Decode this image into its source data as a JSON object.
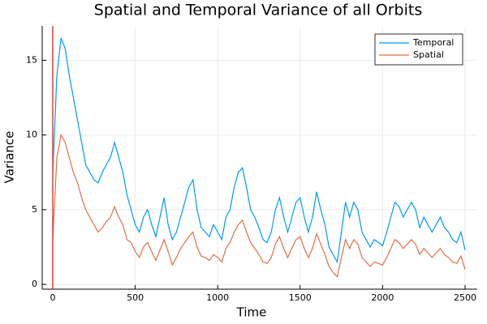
{
  "chart_data": {
    "type": "line",
    "title": "Spatial and Temporal Variance of all Orbits",
    "x_label": "Time",
    "y_label": "Variance",
    "x": [
      0,
      25,
      50,
      75,
      100,
      125,
      150,
      175,
      200,
      225,
      250,
      275,
      300,
      325,
      350,
      375,
      400,
      425,
      450,
      475,
      500,
      525,
      550,
      575,
      600,
      625,
      650,
      675,
      700,
      725,
      750,
      775,
      800,
      825,
      850,
      875,
      900,
      925,
      950,
      975,
      1000,
      1025,
      1050,
      1075,
      1100,
      1125,
      1150,
      1175,
      1200,
      1225,
      1250,
      1275,
      1300,
      1325,
      1350,
      1375,
      1400,
      1425,
      1450,
      1475,
      1500,
      1525,
      1550,
      1575,
      1600,
      1625,
      1650,
      1675,
      1700,
      1725,
      1750,
      1775,
      1800,
      1825,
      1850,
      1875,
      1900,
      1925,
      1950,
      1975,
      2000,
      2025,
      2050,
      2075,
      2100,
      2125,
      2150,
      2175,
      2200,
      2225,
      2250,
      2275,
      2300,
      2325,
      2350,
      2375,
      2400,
      2425,
      2450,
      2475,
      2500
    ],
    "series": [
      {
        "name": "Temporal",
        "color": "#009af9",
        "values": [
          7.5,
          14,
          16.5,
          15.8,
          14,
          12.5,
          11,
          9.5,
          8,
          7.5,
          7,
          6.8,
          7.5,
          8,
          8.5,
          9.5,
          8.5,
          7.5,
          6,
          5,
          4,
          3.5,
          4.5,
          5,
          4,
          3.2,
          4.5,
          5.8,
          4,
          3,
          3.5,
          4.5,
          5.5,
          6.5,
          7,
          5,
          3.8,
          3.5,
          3.2,
          4,
          3.5,
          3,
          4.5,
          5,
          6.5,
          7.5,
          7.8,
          6.5,
          5,
          4.5,
          3.8,
          3,
          2.8,
          3.5,
          5,
          5.8,
          4.5,
          3.5,
          4.5,
          5.5,
          5.8,
          4.5,
          3.5,
          4.5,
          6.2,
          5,
          4,
          2.5,
          2,
          1.5,
          3.5,
          5.5,
          4.5,
          5.5,
          5,
          3.5,
          3,
          2.5,
          3,
          2.8,
          2.6,
          3.5,
          4.5,
          5.5,
          5.2,
          4.5,
          5,
          5.5,
          5,
          3.8,
          4.5,
          4,
          3.5,
          4,
          4.5,
          3.8,
          3.5,
          3,
          2.8,
          3.5,
          2.3
        ]
      },
      {
        "name": "Spatial",
        "color": "#e26f46",
        "values": [
          3,
          8.5,
          10,
          9.5,
          8.5,
          7.5,
          6.8,
          5.8,
          5,
          4.5,
          4,
          3.5,
          3.8,
          4.2,
          4.5,
          5.2,
          4.5,
          4,
          3,
          2.8,
          2.2,
          1.8,
          2.5,
          2.8,
          2.2,
          1.6,
          2.3,
          3,
          2.2,
          1.3,
          1.8,
          2.4,
          2.8,
          3.2,
          3.5,
          2.5,
          1.9,
          1.8,
          1.6,
          2,
          1.8,
          1.5,
          2.4,
          2.8,
          3.5,
          4,
          4.3,
          3.5,
          2.8,
          2.4,
          2,
          1.5,
          1.4,
          1.8,
          2.7,
          3.2,
          2.4,
          1.8,
          2.4,
          3,
          3.2,
          2.4,
          1.8,
          2.4,
          3.4,
          2.7,
          2,
          1.2,
          0.8,
          0.5,
          1.8,
          3,
          2.4,
          3,
          2.7,
          1.8,
          1.5,
          1.2,
          1.5,
          1.4,
          1.3,
          1.8,
          2.4,
          3,
          2.8,
          2.4,
          2.7,
          3,
          2.7,
          2,
          2.4,
          2.1,
          1.8,
          2.1,
          2.4,
          2,
          1.8,
          1.5,
          1.4,
          1.9,
          1
        ]
      }
    ],
    "vlines": [
      0
    ],
    "vline_color": "#e2403a",
    "xlim": [
      -64,
      2574
    ],
    "xticks": [
      0,
      500,
      1000,
      1500,
      2000,
      2500
    ],
    "ylim": [
      -0.32,
      17.3
    ],
    "yticks": [
      0,
      5,
      10,
      15
    ],
    "grid": true,
    "legend": "top-right"
  }
}
